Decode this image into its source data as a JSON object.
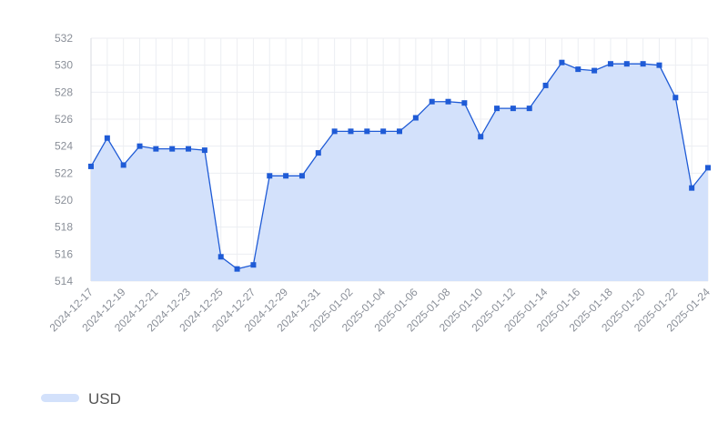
{
  "chart_data": {
    "type": "line",
    "categories": [
      "2024-12-17",
      null,
      "2024-12-19",
      null,
      "2024-12-21",
      null,
      "2024-12-23",
      null,
      "2024-12-25",
      null,
      "2024-12-27",
      null,
      "2024-12-29",
      null,
      "2024-12-31",
      null,
      "2025-01-02",
      null,
      "2025-01-04",
      null,
      "2025-01-06",
      null,
      "2025-01-08",
      null,
      "2025-01-10",
      null,
      "2025-01-12",
      null,
      "2025-01-14",
      null,
      "2025-01-16",
      null,
      "2025-01-18",
      null,
      "2025-01-20",
      null,
      "2025-01-22",
      null,
      "2025-01-24"
    ],
    "series": [
      {
        "name": "USD",
        "color": "#1f5bd6",
        "fill": "#d3e1fb",
        "values": [
          522.5,
          524.6,
          522.6,
          524.0,
          523.8,
          523.8,
          523.8,
          523.7,
          515.8,
          514.9,
          515.2,
          521.8,
          521.8,
          521.8,
          523.5,
          525.1,
          525.1,
          525.1,
          525.1,
          525.1,
          526.1,
          527.3,
          527.3,
          527.2,
          524.7,
          526.8,
          526.8,
          526.8,
          528.5,
          530.2,
          529.7,
          529.6,
          530.1,
          530.1,
          530.1,
          530.0,
          527.6,
          520.9,
          522.4
        ]
      }
    ],
    "ylim": [
      514,
      532
    ],
    "yticks": [
      514,
      516,
      518,
      520,
      522,
      524,
      526,
      528,
      530,
      532
    ],
    "grid": true,
    "legend": "bottom-left"
  }
}
